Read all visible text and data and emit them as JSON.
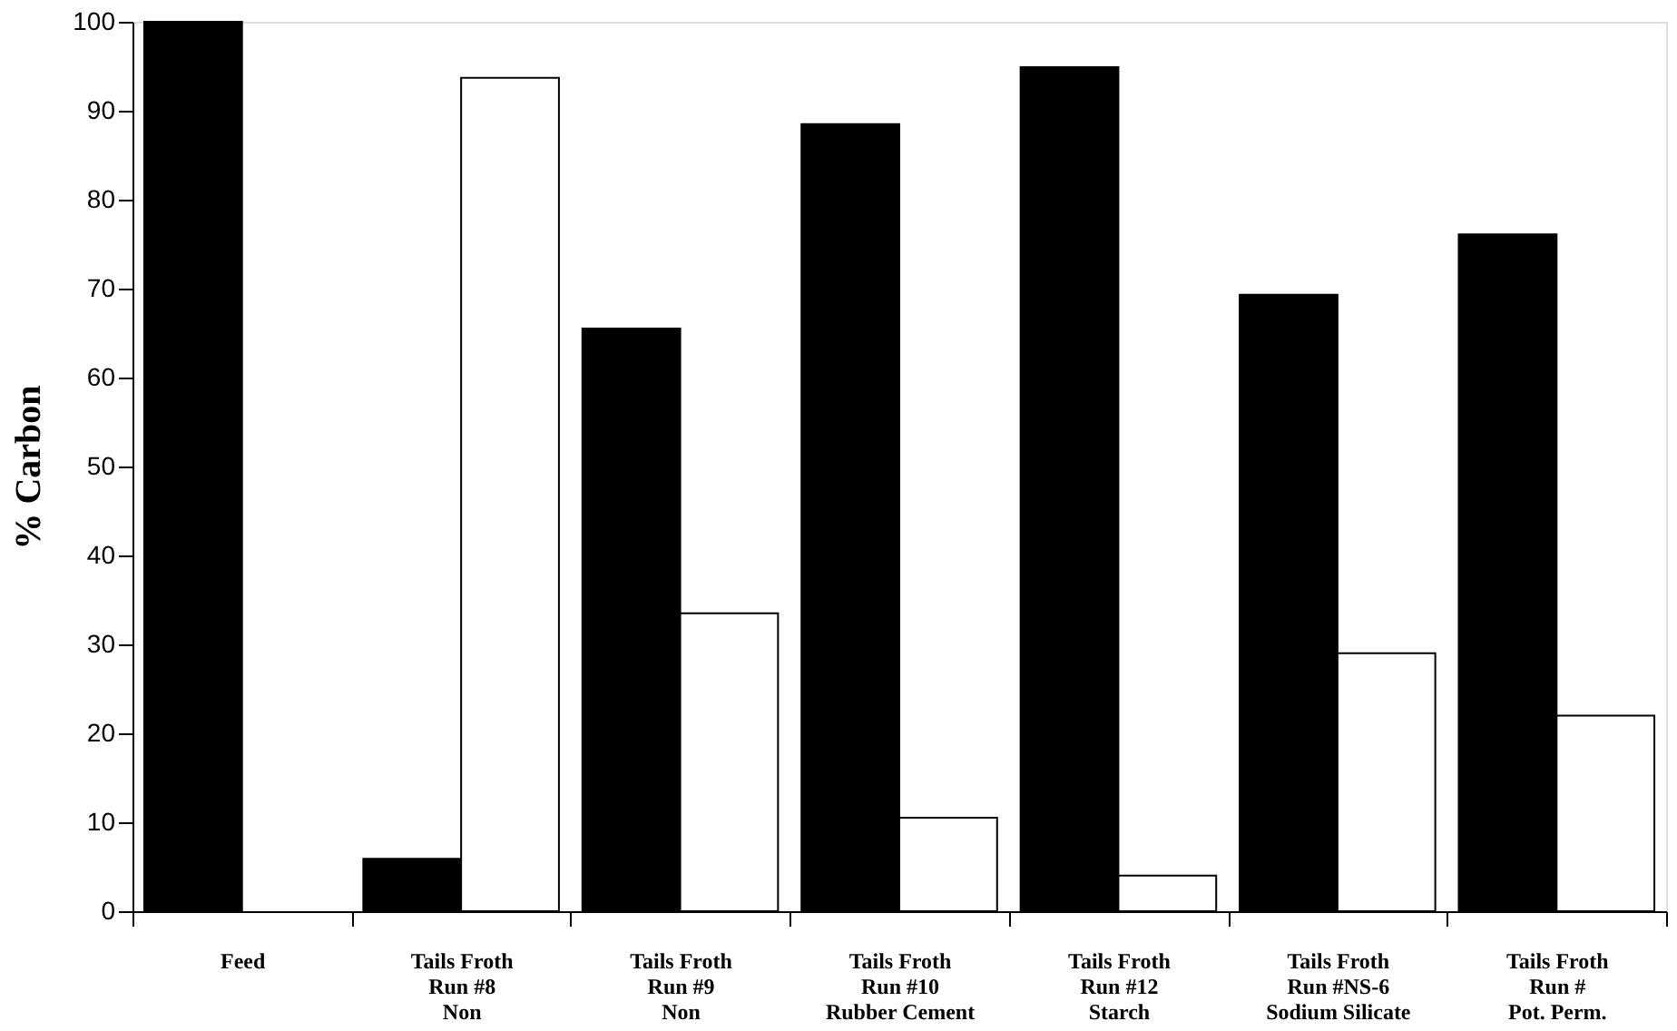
{
  "chart_data": {
    "type": "bar",
    "ylabel": "% Carbon",
    "categories": [
      "Feed",
      "Tails   Froth\nRun #8\nNon",
      "Tails   Froth\nRun #9\nNon",
      "Tails   Froth\nRun #10\nRubber Cement",
      "Tails   Froth\nRun #12\nStarch",
      "Tails   Froth\nRun #NS-6\nSodium Silicate",
      "Tails   Froth\nRun #\nPot. Perm."
    ],
    "series": [
      {
        "color": "#000000",
        "values": [
          100,
          5.9,
          65.5,
          88.5,
          94.9,
          69.3,
          76.1
        ]
      },
      {
        "color": "#ffffff",
        "values": [
          null,
          93.7,
          33.5,
          10.5,
          4,
          29,
          22
        ]
      }
    ],
    "ylim": [
      0,
      100
    ],
    "yticks": [
      0,
      10,
      20,
      30,
      40,
      50,
      60,
      70,
      80,
      90,
      100
    ],
    "grid": false,
    "legend": false
  }
}
